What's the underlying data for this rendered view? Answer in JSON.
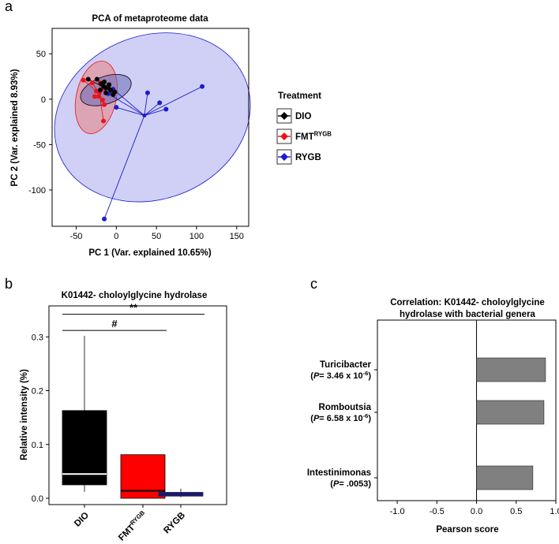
{
  "panels": {
    "a": "a",
    "b": "b",
    "c": "c"
  },
  "chart_data": [
    {
      "type": "scatter",
      "title": "PCA of metaproteome data",
      "xlabel": "PC 1 (Var. explained 10.65%)",
      "ylabel": "PC 2 (Var. explained 8.93%)",
      "xlim": [
        -80,
        165
      ],
      "ylim": [
        -140,
        78
      ],
      "xticks": [
        -50,
        0,
        50,
        100,
        150
      ],
      "yticks": [
        -100,
        -50,
        0,
        50
      ],
      "legend": {
        "title": "Treatment",
        "position": "right",
        "items": [
          {
            "name": "DIO",
            "sup": "",
            "color": "#000000"
          },
          {
            "name": "FMT",
            "sup": "RYGB",
            "color": "#e8161c"
          },
          {
            "name": "RYGB",
            "sup": "",
            "color": "#1c1ccc"
          }
        ]
      },
      "series": [
        {
          "name": "DIO",
          "color": "#000000",
          "centroid": [
            -13,
            12
          ],
          "ellipse": {
            "cx": -13,
            "cy": 10,
            "rx": 33,
            "ry": 15,
            "angle": -20,
            "fill": "#6a6ab6"
          },
          "points": [
            [
              -35,
              22
            ],
            [
              -24,
              22
            ],
            [
              -19,
              17
            ],
            [
              -15,
              19
            ],
            [
              -10,
              14
            ],
            [
              -7,
              10
            ],
            [
              -4,
              5
            ],
            [
              -2,
              8
            ],
            [
              -13,
              7
            ],
            [
              -20,
              10
            ],
            [
              -16,
              14
            ],
            [
              -9,
              16
            ]
          ]
        },
        {
          "name": "FMT",
          "color": "#e8161c",
          "centroid": [
            -21,
            6
          ],
          "ellipse": {
            "cx": -25,
            "cy": 2,
            "rx": 46,
            "ry": 22,
            "angle": -78,
            "fill": "#e88080"
          },
          "points": [
            [
              -41,
              21
            ],
            [
              -30,
              18
            ],
            [
              -25,
              9
            ],
            [
              -22,
              3
            ],
            [
              -17,
              -1
            ],
            [
              -15,
              -6
            ],
            [
              -16,
              -24
            ],
            [
              -27,
              3
            ],
            [
              -20,
              18
            ],
            [
              -14,
              12
            ]
          ]
        },
        {
          "name": "RYGB",
          "color": "#1c1ccc",
          "centroid": [
            35,
            -18
          ],
          "ellipse": {
            "cx": 45,
            "cy": -20,
            "rx": 125,
            "ry": 90,
            "angle": -22,
            "fill": "#aaaaee"
          },
          "points": [
            [
              107,
              14
            ],
            [
              62,
              -11
            ],
            [
              54,
              -4
            ],
            [
              39,
              7
            ],
            [
              -15,
              -132
            ],
            [
              0,
              -9
            ],
            [
              -10,
              6
            ],
            [
              -4,
              11
            ]
          ]
        }
      ]
    },
    {
      "type": "box",
      "title": "K01442- choloylglycine hydrolase",
      "xlabel": "",
      "ylabel": "Relative intensity (%)",
      "ylim": [
        0,
        0.34
      ],
      "yticks": [
        0.0,
        0.1,
        0.2,
        0.3
      ],
      "categories": [
        {
          "label": "DIO",
          "sup": ""
        },
        {
          "label": "FMT",
          "sup": "RYGB"
        },
        {
          "label": "RYGB",
          "sup": ""
        }
      ],
      "boxes": [
        {
          "whisker_low": 0.012,
          "q1": 0.025,
          "median": 0.045,
          "q3": 0.163,
          "whisker_high": 0.302,
          "fill": "#000000",
          "median_color": "#ffffff"
        },
        {
          "whisker_low": 0.0,
          "q1": 0.0,
          "median": 0.014,
          "q3": 0.081,
          "whisker_high": 0.081,
          "fill": "#ff0000",
          "median_color": "#000000"
        },
        {
          "whisker_low": 0.002,
          "q1": 0.004,
          "median": 0.007,
          "q3": 0.011,
          "whisker_high": 0.018,
          "fill": "#1a1a66",
          "median_color": "#1a1a66"
        }
      ],
      "annotations": [
        {
          "from": 0,
          "to": 1,
          "y": 0.312,
          "label": "#"
        },
        {
          "from": 0,
          "to": 2,
          "y": 0.342,
          "label": "**"
        }
      ]
    },
    {
      "type": "bar",
      "orientation": "horizontal",
      "title": [
        "Correlation: K01442- choloylglycine",
        "hydrolase with bacterial genera"
      ],
      "xlabel": "Pearson score",
      "ylabel": "",
      "xlim": [
        -1.25,
        1.0
      ],
      "xticks": [
        -1.0,
        -0.5,
        0.0,
        0.5,
        1.0
      ],
      "bar_color": "#808080",
      "bars": [
        {
          "genus": "Turicibacter",
          "p": "3.46 x 10",
          "exp": "-6",
          "value": 0.87
        },
        {
          "genus": "Romboutsia",
          "p": "6.58 x 10",
          "exp": "-6",
          "value": 0.85
        },
        {
          "genus": "Intestinimonas",
          "p": ".0053",
          "exp": "",
          "value": 0.71
        }
      ]
    }
  ]
}
